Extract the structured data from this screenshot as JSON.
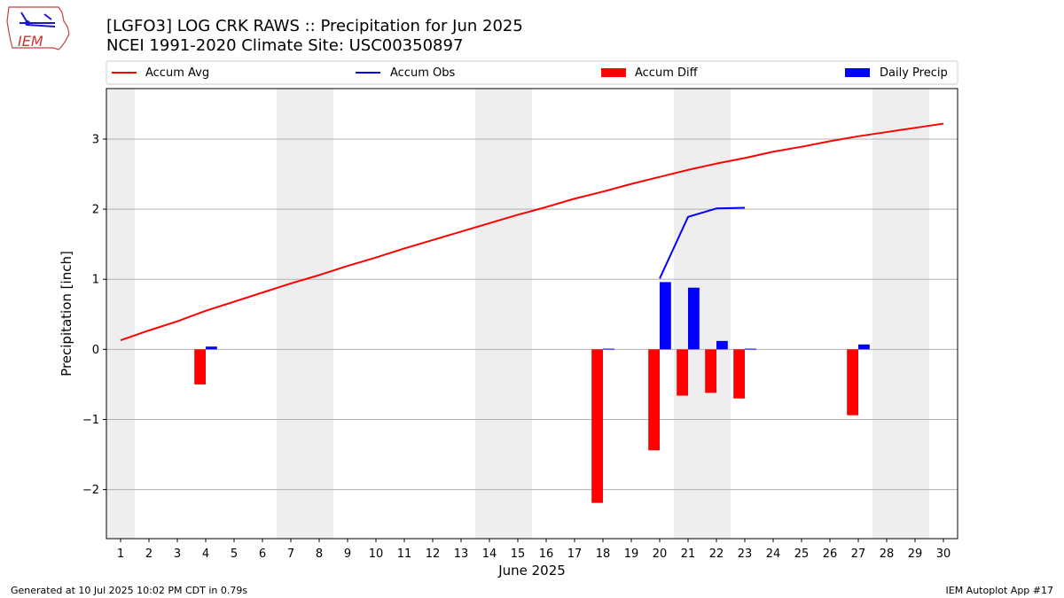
{
  "logo": {
    "text": "IEM"
  },
  "header": {
    "title_line1": "[LGFO3] LOG CRK RAWS :: Precipitation for Jun 2025",
    "title_line2": "NCEI 1991-2020 Climate Site: USC00350897"
  },
  "footer": {
    "left": "Generated at 10 Jul 2025 10:02 PM CDT in 0.79s",
    "right": "IEM Autoplot App #17"
  },
  "colors": {
    "accum_avg": "#ff0000",
    "accum_obs": "#0000ff",
    "accum_diff": "#ff0000",
    "daily_precip": "#0000ff",
    "weekend_shade": "#eeeeee",
    "grid": "#b0b0b0"
  },
  "chart_data": {
    "type": "bar",
    "title": "[LGFO3] LOG CRK RAWS :: Precipitation for Jun 2025",
    "subtitle": "NCEI 1991-2020 Climate Site: USC00350897",
    "xlabel": "June 2025",
    "ylabel": "Precipitation [inch]",
    "x": [
      1,
      2,
      3,
      4,
      5,
      6,
      7,
      8,
      9,
      10,
      11,
      12,
      13,
      14,
      15,
      16,
      17,
      18,
      19,
      20,
      21,
      22,
      23,
      24,
      25,
      26,
      27,
      28,
      29,
      30
    ],
    "xlim": [
      0.5,
      30.5
    ],
    "ylim": [
      -2.7,
      3.72
    ],
    "yticks": [
      -2,
      -1,
      0,
      1,
      2,
      3
    ],
    "ytick_labels": [
      "−2",
      "−1",
      "0",
      "1",
      "2",
      "3"
    ],
    "grid": "y-axis on",
    "legend_position": "top, above plot",
    "weekend_shading_days": [
      1,
      7,
      8,
      14,
      15,
      21,
      22,
      28,
      29
    ],
    "series": [
      {
        "name": "Accum Avg",
        "kind": "line",
        "x": [
          1,
          2,
          3,
          4,
          5,
          6,
          7,
          8,
          9,
          10,
          11,
          12,
          13,
          14,
          15,
          16,
          17,
          18,
          19,
          20,
          21,
          22,
          23,
          24,
          25,
          26,
          27,
          28,
          29,
          30
        ],
        "values": [
          0.13,
          0.27,
          0.4,
          0.55,
          0.68,
          0.81,
          0.94,
          1.06,
          1.19,
          1.31,
          1.44,
          1.56,
          1.68,
          1.8,
          1.92,
          2.03,
          2.15,
          2.25,
          2.36,
          2.46,
          2.56,
          2.65,
          2.73,
          2.82,
          2.89,
          2.97,
          3.04,
          3.1,
          3.16,
          3.22
        ]
      },
      {
        "name": "Accum Obs",
        "kind": "line",
        "x": [
          20,
          21,
          22,
          23
        ],
        "values": [
          1.01,
          1.89,
          2.01,
          2.02
        ]
      },
      {
        "name": "Accum Diff",
        "kind": "bar",
        "x": [
          4,
          18,
          20,
          21,
          22,
          23,
          27
        ],
        "values": [
          -0.5,
          -2.19,
          -1.44,
          -0.66,
          -0.62,
          -0.7,
          -0.94
        ]
      },
      {
        "name": "Daily Precip",
        "kind": "bar",
        "x": [
          4,
          18,
          20,
          21,
          22,
          23,
          27
        ],
        "values": [
          0.04,
          0.01,
          0.96,
          0.88,
          0.12,
          0.01,
          0.07
        ]
      }
    ]
  }
}
